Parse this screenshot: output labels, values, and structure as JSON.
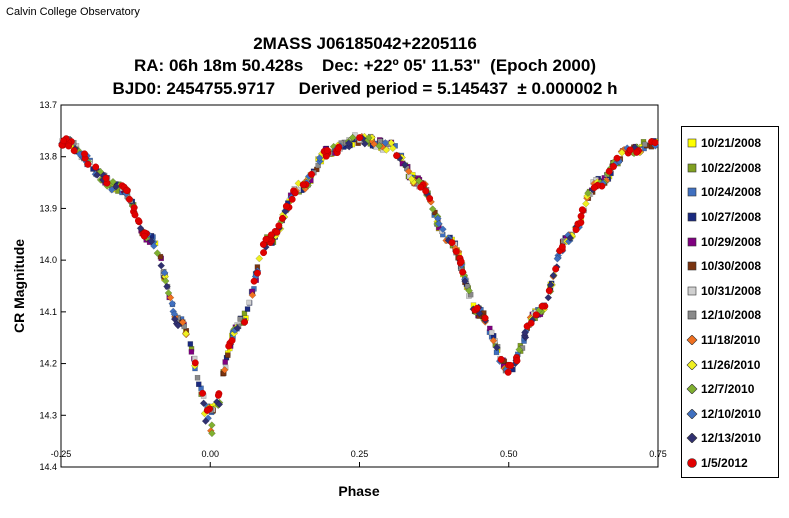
{
  "header": {
    "observatory": "Calvin College Observatory"
  },
  "chart_data": {
    "type": "scatter",
    "title_lines": [
      "2MASS J06185042+2205116",
      "RA: 06h 18m 50.428s    Dec: +22º 05' 11.53\"  (Epoch 2000)",
      "BJD0: 2454755.9717     Derived period = 5.145437  ± 0.000002 h"
    ],
    "xlabel": "Phase",
    "ylabel": "CR Magnitude",
    "xlim": [
      -0.25,
      0.75
    ],
    "ylim": [
      13.7,
      14.4
    ],
    "y_inverted": true,
    "x_ticks": [
      "-0.25",
      "0.00",
      "0.25",
      "0.50",
      "0.75"
    ],
    "y_ticks": [
      "13.7",
      "13.8",
      "13.9",
      "14.0",
      "14.1",
      "14.2",
      "14.3",
      "14.4"
    ],
    "grid": false,
    "legend_position": "right",
    "light_curve_model": {
      "description_points_phase": [
        -0.25,
        -0.15,
        -0.1,
        -0.05,
        0.0,
        0.05,
        0.1,
        0.15,
        0.2,
        0.25,
        0.3,
        0.35,
        0.4,
        0.45,
        0.5,
        0.55,
        0.6,
        0.65,
        0.7,
        0.75
      ],
      "description_points_mag": [
        13.77,
        13.86,
        13.96,
        14.12,
        14.29,
        14.12,
        13.96,
        13.86,
        13.79,
        13.765,
        13.78,
        13.85,
        13.96,
        14.1,
        14.21,
        14.1,
        13.96,
        13.85,
        13.79,
        13.77
      ]
    },
    "series": [
      {
        "name": "10/21/2008",
        "color": "#ffff00",
        "marker": "square"
      },
      {
        "name": "10/22/2008",
        "color": "#80a020",
        "marker": "square"
      },
      {
        "name": "10/24/2008",
        "color": "#4070c0",
        "marker": "square"
      },
      {
        "name": "10/27/2008",
        "color": "#1a2a80",
        "marker": "square"
      },
      {
        "name": "10/29/2008",
        "color": "#800080",
        "marker": "square"
      },
      {
        "name": "10/30/2008",
        "color": "#7a3410",
        "marker": "square"
      },
      {
        "name": "10/31/2008",
        "color": "#d0d0d0",
        "marker": "square"
      },
      {
        "name": "12/10/2008",
        "color": "#8a8a8a",
        "marker": "square"
      },
      {
        "name": "11/18/2010",
        "color": "#f07020",
        "marker": "diamond"
      },
      {
        "name": "11/26/2010",
        "color": "#f0f020",
        "marker": "diamond"
      },
      {
        "name": "12/7/2010",
        "color": "#80b030",
        "marker": "diamond"
      },
      {
        "name": "12/10/2010",
        "color": "#4070c0",
        "marker": "diamond"
      },
      {
        "name": "12/13/2010",
        "color": "#303070",
        "marker": "diamond"
      },
      {
        "name": "1/5/2012",
        "color": "#e00000",
        "marker": "circle"
      }
    ]
  }
}
